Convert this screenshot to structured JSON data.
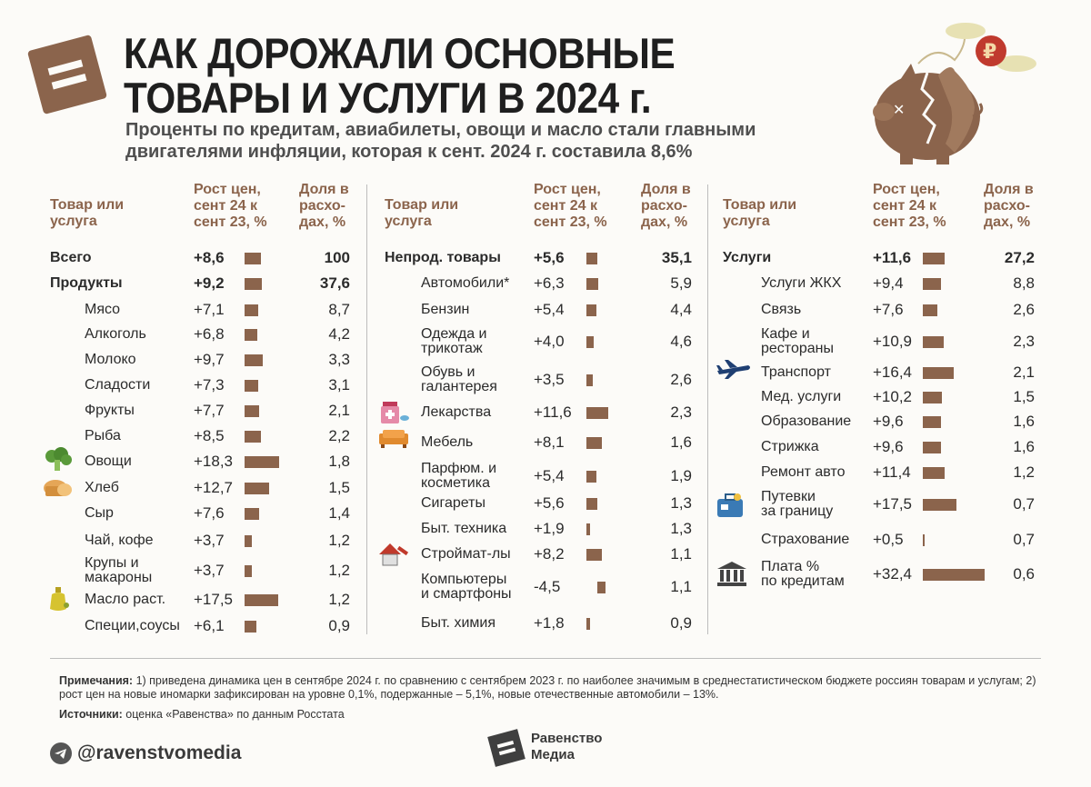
{
  "header": {
    "title_line1": "КАК ДОРОЖАЛИ ОСНОВНЫЕ",
    "title_line2": "ТОВАРЫ И УСЛУГИ В 2024 г.",
    "subtitle_line1": "Проценты по кредитам, авиабилеты, овощи и масло стали главными",
    "subtitle_line2": "двигателями инфляции, которая к сент. 2024 г. составила 8,6%"
  },
  "columns_header": {
    "item": [
      "Товар или",
      "услуга"
    ],
    "growth": [
      "Рост цен,",
      "сент 24 к",
      "сент 23, %"
    ],
    "share": [
      "Доля в",
      "расхо-",
      "дах, %"
    ]
  },
  "colors": {
    "bar": "#8b644c",
    "accent": "#8b644c",
    "text": "#2b2b2b"
  },
  "chart_data": {
    "type": "bar",
    "title": "Как дорожали основные товары и услуги в 2024 г.",
    "xlabel": "Рост цен, сент 24 к сент 23, %",
    "ylabel": "Товар или услуга",
    "share_label": "Доля в расходах, %",
    "columns": [
      {
        "rows": [
          {
            "name": "Всего",
            "growth": "+8,6",
            "value": 8.6,
            "share": "100",
            "bold": true,
            "level": 0
          },
          {
            "name": "Продукты",
            "growth": "+9,2",
            "value": 9.2,
            "share": "37,6",
            "bold": true,
            "level": 0
          },
          {
            "name": "Мясо",
            "growth": "+7,1",
            "value": 7.1,
            "share": "8,7",
            "level": 1
          },
          {
            "name": "Алкоголь",
            "growth": "+6,8",
            "value": 6.8,
            "share": "4,2",
            "level": 1
          },
          {
            "name": "Молоко",
            "growth": "+9,7",
            "value": 9.7,
            "share": "3,3",
            "level": 1
          },
          {
            "name": "Сладости",
            "growth": "+7,3",
            "value": 7.3,
            "share": "3,1",
            "level": 1
          },
          {
            "name": "Фрукты",
            "growth": "+7,7",
            "value": 7.7,
            "share": "2,1",
            "level": 1
          },
          {
            "name": "Рыба",
            "growth": "+8,5",
            "value": 8.5,
            "share": "2,2",
            "level": 1
          },
          {
            "name": "Овощи",
            "growth": "+18,3",
            "value": 18.3,
            "share": "1,8",
            "level": 1,
            "icon": "broccoli-icon"
          },
          {
            "name": "Хлеб",
            "growth": "+12,7",
            "value": 12.7,
            "share": "1,5",
            "level": 1,
            "icon": "bread-icon"
          },
          {
            "name": "Сыр",
            "growth": "+7,6",
            "value": 7.6,
            "share": "1,4",
            "level": 1
          },
          {
            "name": "Чай, кофе",
            "growth": "+3,7",
            "value": 3.7,
            "share": "1,2",
            "level": 1
          },
          {
            "name": "Крупы и\nмакароны",
            "growth": "+3,7",
            "value": 3.7,
            "share": "1,2",
            "level": 1
          },
          {
            "name": "Масло раст.",
            "growth": "+17,5",
            "value": 17.5,
            "share": "1,2",
            "level": 1,
            "icon": "oil-bottle-icon"
          },
          {
            "name": "Специи,соусы",
            "growth": "+6,1",
            "value": 6.1,
            "share": "0,9",
            "level": 1
          }
        ]
      },
      {
        "rows": [
          {
            "name": "Непрод. товары",
            "growth": "+5,6",
            "value": 5.6,
            "share": "35,1",
            "bold": true,
            "level": 0
          },
          {
            "name": "Автомобили*",
            "growth": "+6,3",
            "value": 6.3,
            "share": "5,9",
            "level": 1
          },
          {
            "name": "Бензин",
            "growth": "+5,4",
            "value": 5.4,
            "share": "4,4",
            "level": 1
          },
          {
            "name": "Одежда и\nтрикотаж",
            "growth": "+4,0",
            "value": 4.0,
            "share": "4,6",
            "level": 1
          },
          {
            "name": "Обувь и\nгалантерея",
            "growth": "+3,5",
            "value": 3.5,
            "share": "2,6",
            "level": 1
          },
          {
            "name": "Лекарства",
            "growth": "+11,6",
            "value": 11.6,
            "share": "2,3",
            "level": 1,
            "icon": "medicine-icon"
          },
          {
            "name": "Мебель",
            "growth": "+8,1",
            "value": 8.1,
            "share": "1,6",
            "level": 1,
            "icon": "sofa-icon"
          },
          {
            "name": "Парфюм. и\nкосметика",
            "growth": "+5,4",
            "value": 5.4,
            "share": "1,9",
            "level": 1
          },
          {
            "name": "Сигареты",
            "growth": "+5,6",
            "value": 5.6,
            "share": "1,3",
            "level": 1
          },
          {
            "name": "Быт. техника",
            "growth": "+1,9",
            "value": 1.9,
            "share": "1,3",
            "level": 1
          },
          {
            "name": "Строймат-лы",
            "growth": "+8,2",
            "value": 8.2,
            "share": "1,1",
            "level": 1,
            "icon": "house-tools-icon"
          },
          {
            "name": "Компьютеры\nи смартфоны",
            "growth": "-4,5",
            "value": -4.5,
            "share": "1,1",
            "level": 1
          },
          {
            "name": "Быт. химия",
            "growth": "+1,8",
            "value": 1.8,
            "share": "0,9",
            "level": 1
          }
        ]
      },
      {
        "rows": [
          {
            "name": "Услуги",
            "growth": "+11,6",
            "value": 11.6,
            "share": "27,2",
            "bold": true,
            "level": 0
          },
          {
            "name": "Услуги ЖКХ",
            "growth": "+9,4",
            "value": 9.4,
            "share": "8,8",
            "level": 1
          },
          {
            "name": "Связь",
            "growth": "+7,6",
            "value": 7.6,
            "share": "2,6",
            "level": 1
          },
          {
            "name": "Кафе и\nрестораны",
            "growth": "+10,9",
            "value": 10.9,
            "share": "2,3",
            "level": 1
          },
          {
            "name": "Транспорт",
            "growth": "+16,4",
            "value": 16.4,
            "share": "2,1",
            "level": 1,
            "icon": "airplane-icon"
          },
          {
            "name": "Мед. услуги",
            "growth": "+10,2",
            "value": 10.2,
            "share": "1,5",
            "level": 1
          },
          {
            "name": "Образование",
            "growth": "+9,6",
            "value": 9.6,
            "share": "1,6",
            "level": 1
          },
          {
            "name": "Стрижка",
            "growth": "+9,6",
            "value": 9.6,
            "share": "1,6",
            "level": 1
          },
          {
            "name": "Ремонт авто",
            "growth": "+11,4",
            "value": 11.4,
            "share": "1,2",
            "level": 1
          },
          {
            "name": "Путевки\nза границу",
            "growth": "+17,5",
            "value": 17.5,
            "share": "0,7",
            "level": 1,
            "icon": "suitcase-icon"
          },
          {
            "name": "Страхование",
            "growth": "+0,5",
            "value": 0.5,
            "share": "0,7",
            "level": 1
          },
          {
            "name": "Плата %\nпо кредитам",
            "growth": "+32,4",
            "value": 32.4,
            "share": "0,6",
            "level": 1,
            "icon": "bank-icon"
          }
        ]
      }
    ]
  },
  "notes": {
    "label": "Примечания:",
    "text": " 1) приведена динамика цен в сентябре 2024 г. по сравнению с сентябрем 2023 г. по наиболее значимым в среднестатистическом бюджете россиян товарам и услугам; 2) рост цен на новые иномарки зафиксирован на уровне 0,1%, подержанные – 5,1%, новые отечественные автомобили – 13%.",
    "source_label": "Источники:",
    "source_text": " оценка «Равенства» по данным Росстата"
  },
  "footer": {
    "telegram": "@ravenstvomedia",
    "brand_line1": "Равенство",
    "brand_line2": "Медиа"
  }
}
